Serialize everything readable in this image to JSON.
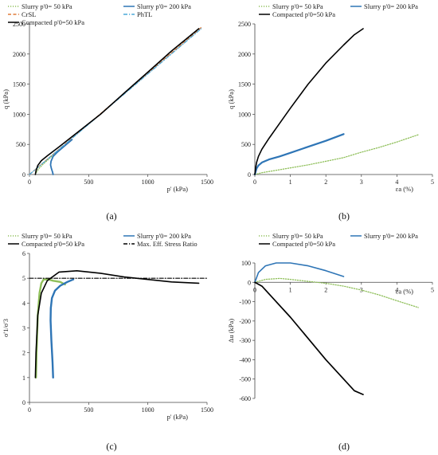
{
  "chart_data": [
    {
      "panel": "a",
      "caption": "(a)",
      "type": "line",
      "xlabel": "p' (kPa)",
      "ylabel": "q (kPa)",
      "xlim": [
        0,
        1500
      ],
      "ylim": [
        0,
        2500
      ],
      "xticks": [
        0,
        500,
        1000,
        1500
      ],
      "yticks": [
        0,
        500,
        1000,
        1500,
        2000,
        2500
      ],
      "legend": [
        {
          "name": "Slurry p'0= 50 kPa",
          "color": "#8fbf5a",
          "style": "dotted"
        },
        {
          "name": "Slurry p'0= 200 kPa",
          "color": "#2e75b6",
          "style": "solid"
        },
        {
          "name": "CrSL",
          "color": "#e07b39",
          "style": "dashed"
        },
        {
          "name": "PhTL",
          "color": "#4aa8d8",
          "style": "dashdot"
        },
        {
          "name": "Compacted p'0=50 kPa",
          "color": "#000000",
          "style": "solid"
        }
      ],
      "series": [
        {
          "name": "Slurry p'0= 50 kPa",
          "color": "#8fbf5a",
          "style": "dotted",
          "width": 1.2,
          "x": [
            50,
            60,
            80,
            120,
            160,
            200,
            230
          ],
          "y": [
            0,
            40,
            100,
            180,
            250,
            320,
            370
          ]
        },
        {
          "name": "Slurry p'0= 200 kPa",
          "color": "#2e75b6",
          "style": "solid",
          "width": 1.8,
          "x": [
            200,
            195,
            185,
            178,
            182,
            200,
            240,
            300,
            360
          ],
          "y": [
            0,
            40,
            100,
            160,
            220,
            300,
            380,
            480,
            580
          ]
        },
        {
          "name": "CrSL",
          "color": "#e07b39",
          "style": "dashed",
          "width": 1.2,
          "x": [
            0,
            1450
          ],
          "y": [
            0,
            2440
          ]
        },
        {
          "name": "PhTL",
          "color": "#4aa8d8",
          "style": "dashdot",
          "width": 1.2,
          "x": [
            0,
            1450
          ],
          "y": [
            0,
            2420
          ]
        },
        {
          "name": "Compacted p'0=50 kPa",
          "color": "#000000",
          "style": "solid",
          "width": 1.6,
          "x": [
            50,
            55,
            70,
            100,
            150,
            250,
            400,
            600,
            800,
            1000,
            1200,
            1430
          ],
          "y": [
            0,
            60,
            150,
            230,
            310,
            460,
            690,
            1000,
            1350,
            1700,
            2050,
            2420
          ]
        }
      ]
    },
    {
      "panel": "b",
      "caption": "(b)",
      "type": "line",
      "xlabel": "εa (%)",
      "ylabel": "q (kPa)",
      "xlim": [
        0,
        5
      ],
      "ylim": [
        0,
        2500
      ],
      "xticks": [
        0,
        1,
        2,
        3,
        4,
        5
      ],
      "yticks": [
        0,
        500,
        1000,
        1500,
        2000,
        2500
      ],
      "legend": [
        {
          "name": "Slurry p'0= 50 kPa",
          "color": "#8fbf5a",
          "style": "dotted"
        },
        {
          "name": "Slurry p'0= 200 kPa",
          "color": "#2e75b6",
          "style": "solid"
        },
        {
          "name": "Compacted p'0=50 kPa",
          "color": "#000000",
          "style": "solid"
        }
      ],
      "series": [
        {
          "name": "Slurry p'0= 50 kPa",
          "color": "#8fbf5a",
          "style": "dotted",
          "width": 1.3,
          "x": [
            0,
            0.2,
            0.5,
            1,
            1.5,
            2,
            2.5,
            3,
            3.5,
            4,
            4.6
          ],
          "y": [
            0,
            30,
            60,
            110,
            160,
            220,
            280,
            370,
            450,
            540,
            660
          ]
        },
        {
          "name": "Slurry p'0= 200 kPa",
          "color": "#2e75b6",
          "style": "solid",
          "width": 2.2,
          "x": [
            0,
            0.05,
            0.1,
            0.2,
            0.4,
            0.7,
            1,
            1.5,
            2,
            2.5
          ],
          "y": [
            0,
            100,
            150,
            200,
            250,
            300,
            360,
            460,
            560,
            670
          ]
        },
        {
          "name": "Compacted p'0=50 kPa",
          "color": "#000000",
          "style": "solid",
          "width": 1.6,
          "x": [
            0,
            0.02,
            0.05,
            0.1,
            0.2,
            0.4,
            0.7,
            1,
            1.5,
            2,
            2.5,
            2.8,
            3.05
          ],
          "y": [
            0,
            100,
            200,
            300,
            420,
            600,
            850,
            1100,
            1500,
            1850,
            2150,
            2320,
            2420
          ]
        }
      ]
    },
    {
      "panel": "c",
      "caption": "(c)",
      "type": "line",
      "xlabel": "p' (kPa)",
      "ylabel": "σ'1/σ'3",
      "xlim": [
        0,
        1500
      ],
      "ylim": [
        0,
        6
      ],
      "xticks": [
        0,
        500,
        1000,
        1500
      ],
      "yticks": [
        0,
        1,
        2,
        3,
        4,
        5,
        6
      ],
      "legend": [
        {
          "name": "Slurry p'0= 50 kPa",
          "color": "#8fbf5a",
          "style": "dotted"
        },
        {
          "name": "Slurry p'0= 200 kPa",
          "color": "#2e75b6",
          "style": "solid"
        },
        {
          "name": "Compacted p'0=50 kPa",
          "color": "#000000",
          "style": "solid"
        },
        {
          "name": "Max. Eff. Stress Ratio",
          "color": "#000000",
          "style": "dashdot"
        }
      ],
      "series": [
        {
          "name": "Slurry p'0= 50 kPa",
          "color": "#8fbf5a",
          "style": "solid",
          "width": 2.4,
          "x": [
            55,
            60,
            70,
            85,
            100,
            120,
            160,
            200,
            260,
            300
          ],
          "y": [
            1.0,
            2.0,
            3.5,
            4.4,
            4.8,
            4.95,
            4.95,
            4.9,
            4.85,
            4.75
          ]
        },
        {
          "name": "Slurry p'0= 200 kPa",
          "color": "#2e75b6",
          "style": "solid",
          "width": 2.4,
          "x": [
            200,
            195,
            185,
            178,
            180,
            190,
            215,
            260,
            320,
            370
          ],
          "y": [
            1.0,
            1.6,
            2.5,
            3.3,
            3.8,
            4.2,
            4.5,
            4.7,
            4.85,
            4.95
          ]
        },
        {
          "name": "Compacted p'0=50 kPa",
          "color": "#000000",
          "style": "solid",
          "width": 1.6,
          "x": [
            50,
            55,
            70,
            100,
            150,
            250,
            400,
            600,
            800,
            1000,
            1200,
            1430
          ],
          "y": [
            1.0,
            2.0,
            3.5,
            4.4,
            4.9,
            5.25,
            5.3,
            5.2,
            5.05,
            4.95,
            4.85,
            4.8
          ]
        },
        {
          "name": "Max. Eff. Stress Ratio",
          "color": "#000000",
          "style": "dashdot",
          "width": 1.1,
          "x": [
            0,
            1500
          ],
          "y": [
            5.0,
            5.0
          ]
        }
      ]
    },
    {
      "panel": "d",
      "caption": "(d)",
      "type": "line",
      "xlabel": "εa (%)",
      "ylabel": "Δu (kPa)",
      "xlim": [
        0,
        5
      ],
      "ylim": [
        -600,
        100
      ],
      "xticks": [
        0,
        1,
        2,
        3,
        4,
        5
      ],
      "yticks": [
        -600,
        -500,
        -400,
        -300,
        -200,
        -100,
        0,
        100
      ],
      "legend": [
        {
          "name": "Slurry p'0= 50 kPa",
          "color": "#8fbf5a",
          "style": "dotted"
        },
        {
          "name": "Slurry p'0= 200 kPa",
          "color": "#2e75b6",
          "style": "solid"
        },
        {
          "name": "Compacted p'0=50 kPa",
          "color": "#000000",
          "style": "solid"
        }
      ],
      "series": [
        {
          "name": "Slurry p'0= 50 kPa",
          "color": "#8fbf5a",
          "style": "dotted",
          "width": 1.3,
          "x": [
            0,
            0.3,
            0.7,
            1,
            1.5,
            2,
            2.5,
            3,
            3.5,
            4,
            4.6
          ],
          "y": [
            0,
            15,
            20,
            15,
            5,
            -5,
            -20,
            -40,
            -65,
            -95,
            -130
          ]
        },
        {
          "name": "Slurry p'0= 200 kPa",
          "color": "#2e75b6",
          "style": "solid",
          "width": 1.6,
          "x": [
            0,
            0.1,
            0.3,
            0.6,
            1,
            1.5,
            2,
            2.5
          ],
          "y": [
            0,
            50,
            85,
            100,
            100,
            85,
            60,
            30
          ]
        },
        {
          "name": "Compacted p'0=50 kPa",
          "color": "#000000",
          "style": "solid",
          "width": 1.7,
          "x": [
            0,
            0.2,
            0.5,
            1,
            1.5,
            2,
            2.5,
            2.8,
            3.05
          ],
          "y": [
            0,
            -20,
            -80,
            -180,
            -290,
            -400,
            -500,
            -560,
            -580
          ]
        }
      ]
    }
  ]
}
